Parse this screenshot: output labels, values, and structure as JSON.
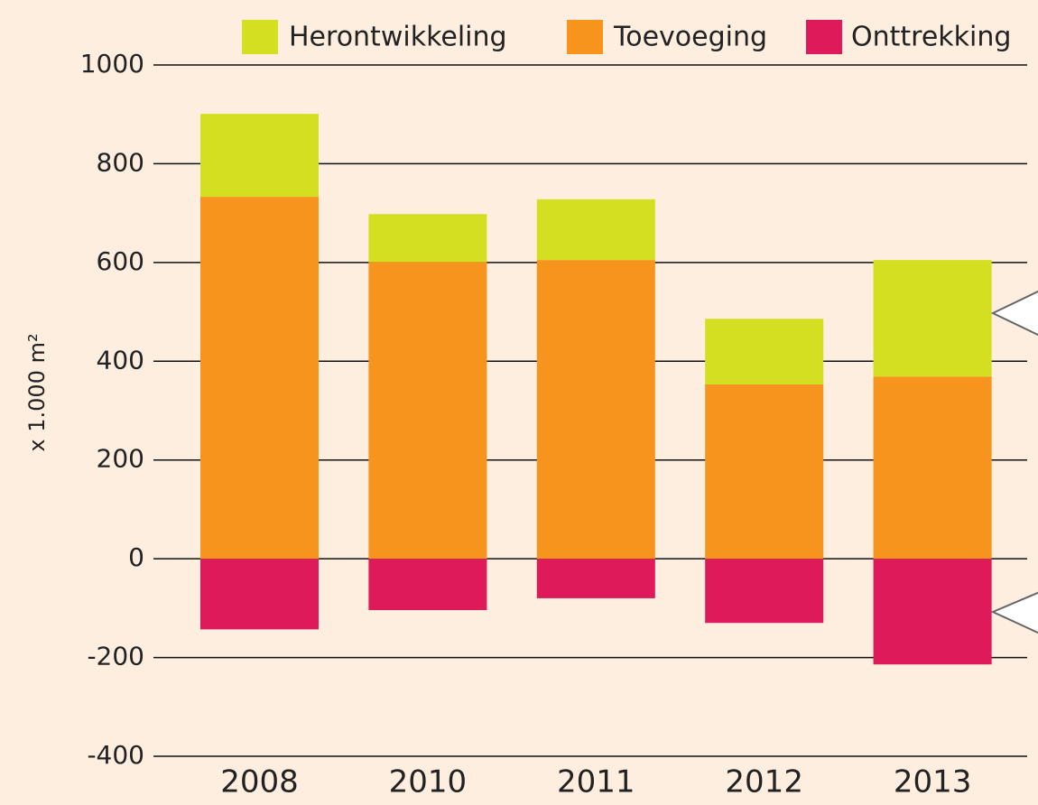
{
  "chart_data": {
    "type": "stacked_bar",
    "categories": [
      "2008",
      "2010",
      "2011",
      "2012",
      "2013"
    ],
    "series": [
      {
        "name": "Herontwikkeling",
        "color": "#d4df22",
        "values": [
          168,
          97,
          123,
          133,
          236
        ]
      },
      {
        "name": "Toevoeging",
        "color": "#f7941d",
        "values": [
          733,
          601,
          605,
          353,
          369
        ]
      },
      {
        "name": "Onttrekking",
        "color": "#de1a5a",
        "values": [
          -143,
          -104,
          -80,
          -130,
          -214
        ]
      }
    ],
    "y_label": "x 1.000 m²",
    "ylim": [
      -400,
      1000
    ],
    "yticks": [
      -400,
      -200,
      0,
      200,
      400,
      600,
      800,
      1000
    ],
    "grid": true,
    "legend": "top"
  }
}
